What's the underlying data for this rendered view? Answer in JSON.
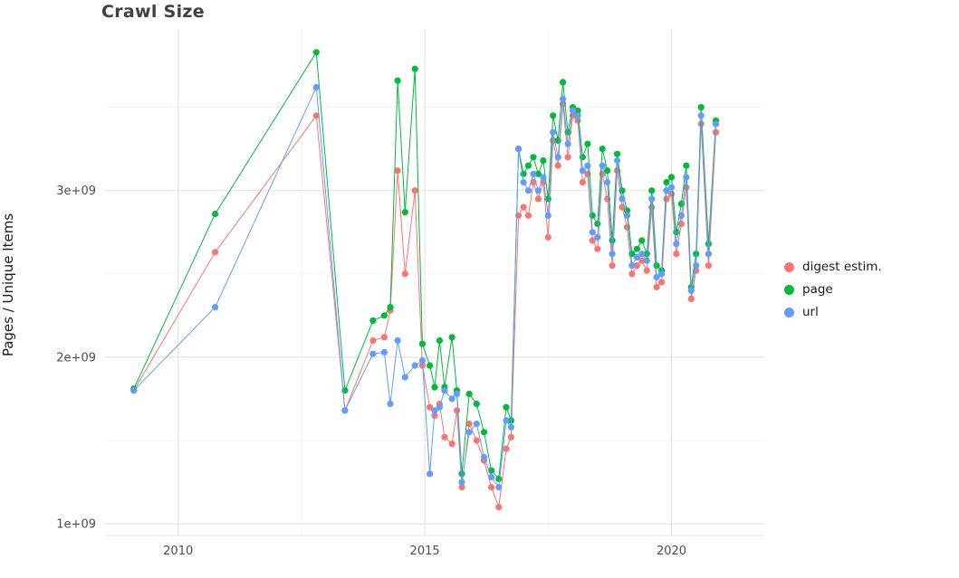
{
  "chart_data": {
    "type": "line",
    "title": "Crawl Size",
    "xlabel": "",
    "ylabel": "Pages / Unique Items",
    "y_unit_multiplier": 1000000000.0,
    "xlim": [
      2008.5,
      2021.9
    ],
    "ylim_e9": [
      0.93,
      3.97
    ],
    "grid": true,
    "legend_position": "right",
    "x_ticks": [
      {
        "value": 2010,
        "label": "2010"
      },
      {
        "value": 2015,
        "label": "2015"
      },
      {
        "value": 2020,
        "label": "2020"
      }
    ],
    "y_ticks": [
      {
        "value_e9": 1,
        "label": "1e+09"
      },
      {
        "value_e9": 2,
        "label": "2e+09"
      },
      {
        "value_e9": 3,
        "label": "3e+09"
      }
    ],
    "x_minor_ticks": [
      2012.5,
      2017.5
    ],
    "y_minor_ticks_e9": [
      1.5,
      2.5,
      3.5
    ],
    "x": [
      2009.1,
      2010.75,
      2012.8,
      2013.38,
      2013.95,
      2014.18,
      2014.3,
      2014.45,
      2014.6,
      2014.8,
      2014.95,
      2015.1,
      2015.2,
      2015.3,
      2015.4,
      2015.55,
      2015.65,
      2015.75,
      2015.9,
      2016.05,
      2016.2,
      2016.35,
      2016.5,
      2016.65,
      2016.75,
      2016.9,
      2017.0,
      2017.1,
      2017.2,
      2017.3,
      2017.4,
      2017.5,
      2017.6,
      2017.7,
      2017.8,
      2017.9,
      2018.0,
      2018.1,
      2018.2,
      2018.3,
      2018.4,
      2018.5,
      2018.6,
      2018.7,
      2018.8,
      2018.9,
      2019.0,
      2019.1,
      2019.2,
      2019.3,
      2019.4,
      2019.5,
      2019.6,
      2019.7,
      2019.8,
      2019.9,
      2020.0,
      2020.1,
      2020.2,
      2020.3,
      2020.4,
      2020.5,
      2020.6,
      2020.75,
      2020.9
    ],
    "series": [
      {
        "name": "digest estim.",
        "color": "#F8766D",
        "values_e9": [
          1.8,
          2.63,
          3.45,
          1.68,
          2.1,
          2.12,
          2.28,
          3.12,
          2.5,
          3.0,
          1.95,
          1.7,
          1.65,
          1.72,
          1.52,
          1.48,
          1.68,
          1.22,
          1.6,
          1.5,
          1.38,
          1.22,
          1.1,
          1.45,
          1.52,
          2.85,
          2.9,
          2.85,
          3.05,
          2.95,
          3.05,
          2.72,
          3.3,
          3.15,
          3.52,
          3.2,
          3.45,
          3.42,
          3.05,
          3.1,
          2.7,
          2.65,
          3.1,
          2.95,
          2.55,
          3.12,
          2.9,
          2.78,
          2.5,
          2.55,
          2.58,
          2.52,
          2.9,
          2.42,
          2.45,
          2.95,
          2.98,
          2.62,
          2.8,
          3.02,
          2.35,
          2.52,
          3.4,
          2.55,
          3.35
        ]
      },
      {
        "name": "page",
        "color": "#00BA38",
        "values_e9": [
          1.81,
          2.86,
          3.83,
          1.8,
          2.22,
          2.25,
          2.3,
          3.66,
          2.87,
          3.73,
          2.08,
          1.95,
          1.82,
          2.1,
          1.82,
          2.12,
          1.8,
          1.3,
          1.78,
          1.72,
          1.55,
          1.32,
          1.27,
          1.7,
          1.62,
          3.25,
          3.1,
          3.15,
          3.2,
          3.1,
          3.18,
          2.95,
          3.45,
          3.3,
          3.65,
          3.35,
          3.5,
          3.48,
          3.2,
          3.28,
          2.85,
          2.8,
          3.25,
          3.12,
          2.7,
          3.22,
          3.0,
          2.88,
          2.62,
          2.65,
          2.7,
          2.62,
          3.0,
          2.55,
          2.52,
          3.05,
          3.08,
          2.75,
          2.92,
          3.15,
          2.42,
          2.62,
          3.5,
          2.68,
          3.42
        ]
      },
      {
        "name": "url",
        "color": "#619CFF",
        "values_e9": [
          1.8,
          2.3,
          3.62,
          1.68,
          2.02,
          2.03,
          1.72,
          2.1,
          1.88,
          1.95,
          1.98,
          1.3,
          1.68,
          1.7,
          1.8,
          1.75,
          1.78,
          1.25,
          1.55,
          1.6,
          1.4,
          1.28,
          1.22,
          1.62,
          1.58,
          3.25,
          3.05,
          3.0,
          3.1,
          3.0,
          3.08,
          2.85,
          3.35,
          3.2,
          3.55,
          3.28,
          3.48,
          3.45,
          3.12,
          3.15,
          2.75,
          2.72,
          3.15,
          3.05,
          2.62,
          3.18,
          2.95,
          2.85,
          2.55,
          2.6,
          2.62,
          2.58,
          2.95,
          2.48,
          2.5,
          3.0,
          3.02,
          2.68,
          2.85,
          3.08,
          2.4,
          2.55,
          3.45,
          2.62,
          3.4
        ]
      }
    ]
  }
}
